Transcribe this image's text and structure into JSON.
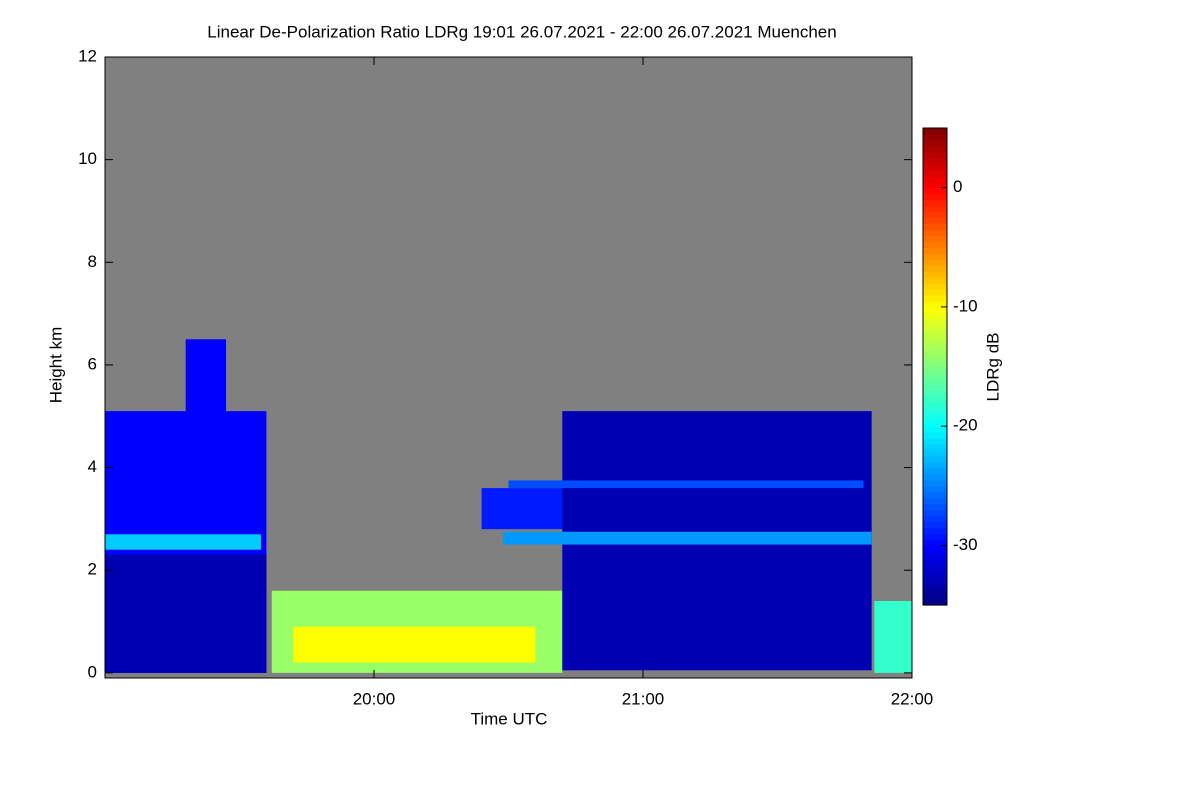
{
  "chart_data": {
    "type": "heatmap",
    "title": "Linear De-Polarization Ratio LDRg   19:01 26.07.2021 - 22:00 26.07.2021 Muenchen",
    "xlabel": "Time UTC",
    "ylabel": "Height km",
    "colorbar_label": "LDRg dB",
    "colormap": "jet",
    "background": "#808080",
    "xlim": [
      19.0,
      22.0
    ],
    "xticks": [
      {
        "value": 20,
        "label": "20:00"
      },
      {
        "value": 21,
        "label": "21:00"
      },
      {
        "value": 22,
        "label": "22:00"
      }
    ],
    "ylim": [
      -0.1,
      12
    ],
    "yticks": [
      0,
      2,
      4,
      6,
      8,
      10,
      12
    ],
    "clim": [
      -35,
      5
    ],
    "cticks": [
      0,
      -10,
      -20,
      -30
    ],
    "regions": [
      {
        "start": 19.0,
        "end": 19.6,
        "bottom": 0,
        "top": 5.1,
        "value": -30
      },
      {
        "start": 19.3,
        "end": 19.45,
        "bottom": 4.5,
        "top": 6.5,
        "value": -30
      },
      {
        "start": 19.0,
        "end": 19.6,
        "bottom": 0,
        "top": 2.3,
        "value": -33
      },
      {
        "start": 19.0,
        "end": 19.58,
        "bottom": 2.4,
        "top": 2.7,
        "value": -22
      },
      {
        "start": 19.62,
        "end": 20.7,
        "bottom": 0,
        "top": 1.6,
        "value": -14
      },
      {
        "start": 19.7,
        "end": 20.6,
        "bottom": 0.2,
        "top": 0.9,
        "value": -10
      },
      {
        "start": 20.4,
        "end": 20.72,
        "bottom": 2.8,
        "top": 3.6,
        "value": -29
      },
      {
        "start": 20.7,
        "end": 21.85,
        "bottom": 0.05,
        "top": 5.1,
        "value": -33
      },
      {
        "start": 20.48,
        "end": 21.85,
        "bottom": 2.5,
        "top": 2.75,
        "value": -24
      },
      {
        "start": 20.5,
        "end": 21.82,
        "bottom": 3.6,
        "top": 3.75,
        "value": -27
      },
      {
        "start": 21.86,
        "end": 22.0,
        "bottom": 0,
        "top": 1.4,
        "value": -18
      }
    ]
  }
}
